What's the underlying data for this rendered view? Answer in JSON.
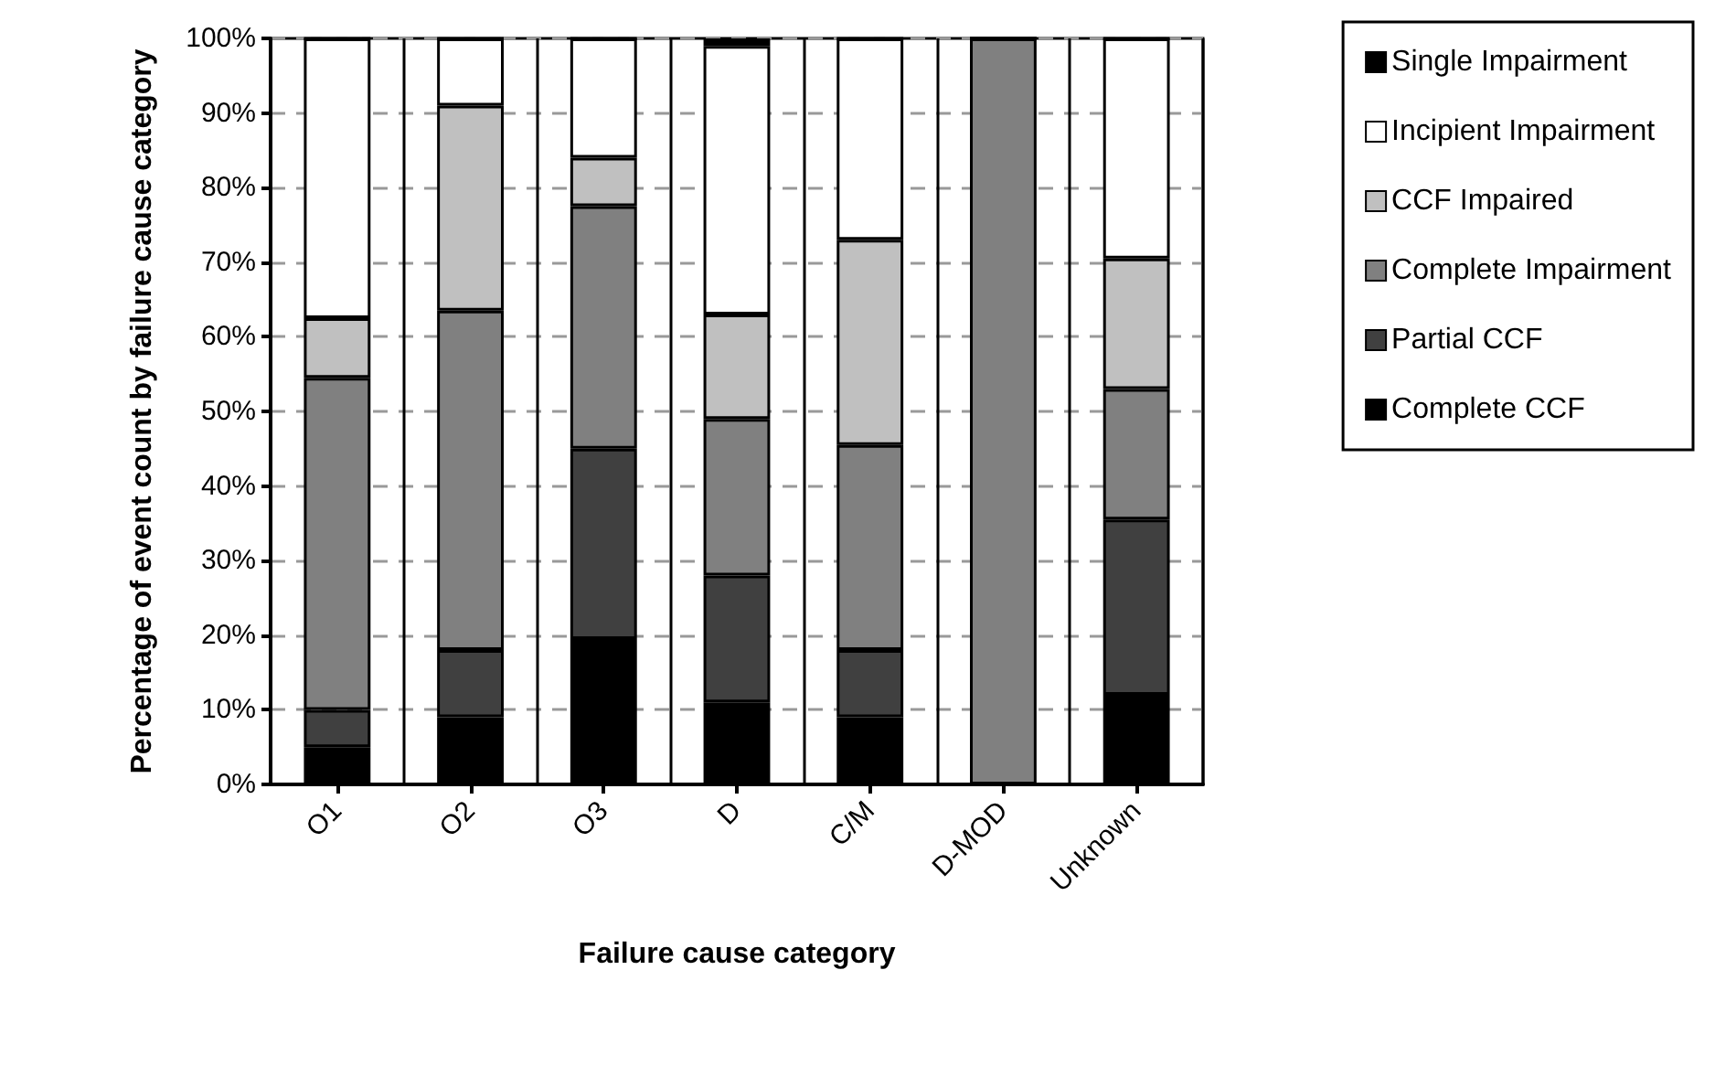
{
  "chart_data": {
    "type": "bar",
    "stacked": true,
    "xlabel": "Failure cause category",
    "ylabel": "Percentage of event count by failure cause category",
    "categories": [
      "O1",
      "O2",
      "O3",
      "D",
      "C/M",
      "D-MOD",
      "Unknown"
    ],
    "series": [
      {
        "name": "Complete CCF",
        "color": "#000000",
        "values": [
          5,
          9,
          19.5,
          11,
          9,
          0,
          12
        ]
      },
      {
        "name": "Partial CCF",
        "color": "#404040",
        "values": [
          5,
          9,
          25.5,
          17,
          9,
          0,
          23.5
        ]
      },
      {
        "name": "Complete Impairment",
        "color": "#808080",
        "values": [
          44.5,
          45.5,
          32.5,
          21,
          27.5,
          100,
          17.5
        ]
      },
      {
        "name": "CCF Impaired",
        "color": "#c0c0c0",
        "values": [
          8,
          27.5,
          6.5,
          14,
          27.5,
          0,
          17.5
        ]
      },
      {
        "name": "Incipient Impairment",
        "color": "#ffffff",
        "values": [
          37.5,
          9,
          16,
          36,
          27,
          0,
          29.5
        ]
      },
      {
        "name": "Single Impairment",
        "color": "#000000",
        "values": [
          0,
          0,
          0,
          1,
          0,
          0,
          0
        ]
      }
    ],
    "ylim": [
      0,
      100
    ],
    "yticks": [
      {
        "value": 0,
        "label": "0%"
      },
      {
        "value": 10,
        "label": "10%"
      },
      {
        "value": 20,
        "label": "20%"
      },
      {
        "value": 30,
        "label": "30%"
      },
      {
        "value": 40,
        "label": "40%"
      },
      {
        "value": 50,
        "label": "50%"
      },
      {
        "value": 60,
        "label": "60%"
      },
      {
        "value": 70,
        "label": "70%"
      },
      {
        "value": 80,
        "label": "80%"
      },
      {
        "value": 90,
        "label": "90%"
      },
      {
        "value": 100,
        "label": "100%"
      }
    ],
    "grid": "y",
    "legend": "right"
  }
}
